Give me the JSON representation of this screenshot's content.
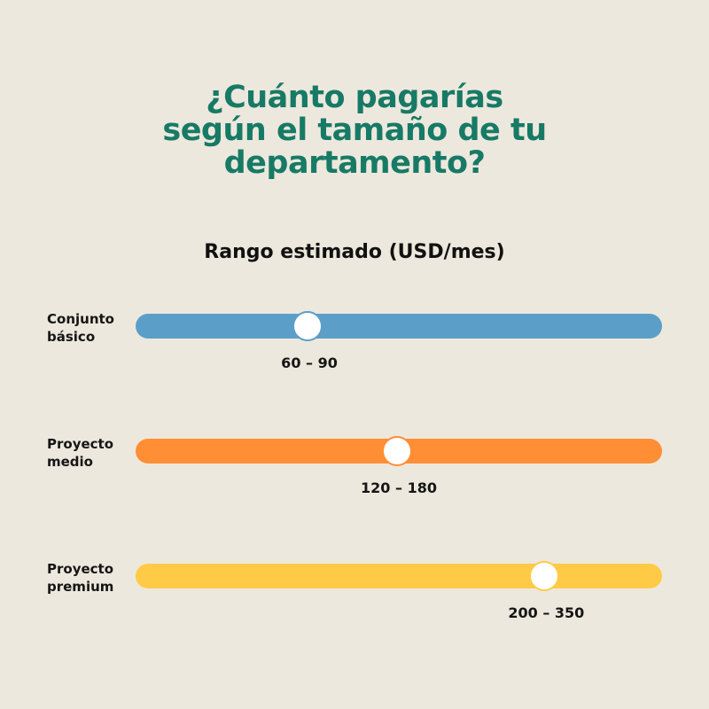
{
  "title": {
    "lines": [
      "¿Cuánto pagarías",
      "según el tamaño de tu",
      "departamento?"
    ]
  },
  "subtitle": "Rango estimado (USD/mes)",
  "colors": {
    "background": "#EDE8DD",
    "title": "#177A66",
    "text": "#151515"
  },
  "sliders": [
    {
      "label_lines": [
        "Conjunto",
        "básico"
      ],
      "range": "60 – 90",
      "position": 0.33,
      "color": "#5B9FC9"
    },
    {
      "label_lines": [
        "Proyecto",
        "medio"
      ],
      "range": "120 – 180",
      "position": 0.5,
      "color": "#FF8E35"
    },
    {
      "label_lines": [
        "Proyecto",
        "premium"
      ],
      "range": "200 – 350",
      "position": 0.78,
      "color": "#FFCB47"
    }
  ]
}
